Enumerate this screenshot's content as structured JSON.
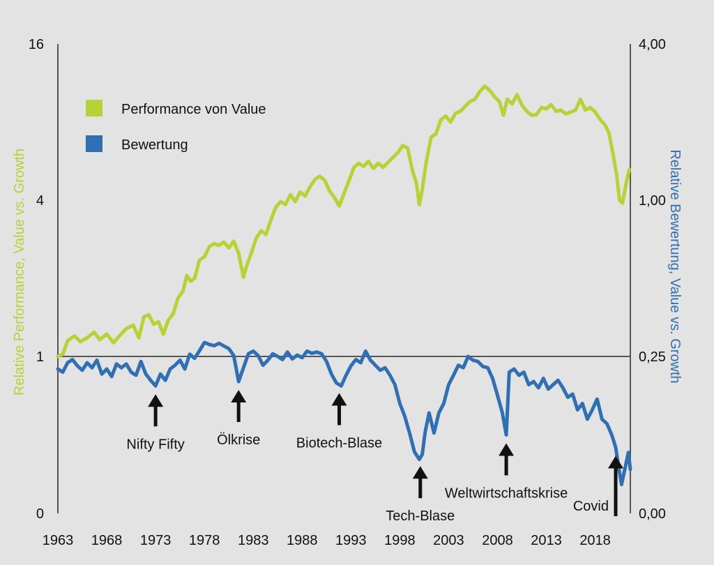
{
  "colors": {
    "background": "#e3e3e3",
    "performance": "#b5d334",
    "valuation": "#2f6fb3",
    "axis": "#555555",
    "arrow": "#111111"
  },
  "chart_data": {
    "type": "line",
    "x_ticks": [
      "1963",
      "1968",
      "1973",
      "1978",
      "1983",
      "1988",
      "1993",
      "1998",
      "2003",
      "2008",
      "2013",
      "2018"
    ],
    "x_range": [
      1963,
      2021.6
    ],
    "y_left": {
      "label": "Relative Performance, Value vs. Growth",
      "scale": "log-segmented",
      "ticks": [
        "0",
        "1",
        "4",
        "16"
      ],
      "tick_values": [
        0,
        1,
        4,
        16
      ]
    },
    "y_right": {
      "label": "Relative Bewertung, Value vs. Growth",
      "scale": "log-segmented",
      "ticks": [
        "0,00",
        "0,25",
        "1,00",
        "4,00"
      ],
      "tick_values": [
        0,
        0.25,
        1,
        4
      ]
    },
    "reference_line": 1,
    "legend": {
      "position": "top-left",
      "items": [
        {
          "label": "Performance von Value",
          "color": "#b5d334"
        },
        {
          "label": "Bewertung",
          "color": "#2f6fb3"
        }
      ]
    },
    "series": [
      {
        "name": "Performance von Value",
        "axis": "left",
        "color": "#b5d334",
        "points": [
          [
            1963.0,
            1.0
          ],
          [
            1963.5,
            1.02
          ],
          [
            1964.0,
            1.15
          ],
          [
            1964.7,
            1.2
          ],
          [
            1965.3,
            1.14
          ],
          [
            1966.0,
            1.18
          ],
          [
            1966.7,
            1.24
          ],
          [
            1967.3,
            1.16
          ],
          [
            1968.0,
            1.22
          ],
          [
            1968.7,
            1.13
          ],
          [
            1969.3,
            1.2
          ],
          [
            1970.0,
            1.28
          ],
          [
            1970.7,
            1.32
          ],
          [
            1971.3,
            1.18
          ],
          [
            1971.8,
            1.42
          ],
          [
            1972.3,
            1.45
          ],
          [
            1972.8,
            1.33
          ],
          [
            1973.3,
            1.36
          ],
          [
            1973.8,
            1.22
          ],
          [
            1974.3,
            1.38
          ],
          [
            1974.8,
            1.46
          ],
          [
            1975.3,
            1.68
          ],
          [
            1975.8,
            1.78
          ],
          [
            1976.2,
            2.05
          ],
          [
            1976.6,
            1.95
          ],
          [
            1977.0,
            2.0
          ],
          [
            1977.5,
            2.35
          ],
          [
            1978.0,
            2.42
          ],
          [
            1978.5,
            2.65
          ],
          [
            1979.0,
            2.72
          ],
          [
            1979.5,
            2.68
          ],
          [
            1980.0,
            2.76
          ],
          [
            1980.5,
            2.62
          ],
          [
            1981.0,
            2.78
          ],
          [
            1981.5,
            2.5
          ],
          [
            1982.0,
            2.02
          ],
          [
            1982.3,
            2.22
          ],
          [
            1982.8,
            2.5
          ],
          [
            1983.3,
            2.85
          ],
          [
            1983.8,
            3.05
          ],
          [
            1984.3,
            2.95
          ],
          [
            1984.8,
            3.35
          ],
          [
            1985.3,
            3.75
          ],
          [
            1985.8,
            3.95
          ],
          [
            1986.3,
            3.85
          ],
          [
            1986.8,
            4.2
          ],
          [
            1987.3,
            3.95
          ],
          [
            1987.8,
            4.3
          ],
          [
            1988.3,
            4.15
          ],
          [
            1988.8,
            4.5
          ],
          [
            1989.3,
            4.8
          ],
          [
            1989.8,
            4.95
          ],
          [
            1990.3,
            4.78
          ],
          [
            1990.8,
            4.35
          ],
          [
            1991.3,
            4.1
          ],
          [
            1991.8,
            3.8
          ],
          [
            1992.3,
            4.25
          ],
          [
            1992.8,
            4.75
          ],
          [
            1993.3,
            5.35
          ],
          [
            1993.8,
            5.55
          ],
          [
            1994.3,
            5.4
          ],
          [
            1994.8,
            5.65
          ],
          [
            1995.3,
            5.3
          ],
          [
            1995.8,
            5.55
          ],
          [
            1996.3,
            5.35
          ],
          [
            1996.8,
            5.6
          ],
          [
            1997.3,
            5.85
          ],
          [
            1997.8,
            6.1
          ],
          [
            1998.3,
            6.5
          ],
          [
            1998.8,
            6.35
          ],
          [
            1999.3,
            5.2
          ],
          [
            1999.7,
            4.65
          ],
          [
            2000.0,
            3.85
          ],
          [
            2000.3,
            4.4
          ],
          [
            2000.7,
            5.6
          ],
          [
            2001.2,
            7.0
          ],
          [
            2001.7,
            7.2
          ],
          [
            2002.2,
            8.15
          ],
          [
            2002.7,
            8.45
          ],
          [
            2003.2,
            8.0
          ],
          [
            2003.7,
            8.65
          ],
          [
            2004.2,
            8.8
          ],
          [
            2004.7,
            9.2
          ],
          [
            2005.2,
            9.6
          ],
          [
            2005.7,
            9.8
          ],
          [
            2006.2,
            10.5
          ],
          [
            2006.7,
            11.0
          ],
          [
            2007.2,
            10.6
          ],
          [
            2007.7,
            10.0
          ],
          [
            2008.2,
            9.6
          ],
          [
            2008.6,
            8.5
          ],
          [
            2009.0,
            9.8
          ],
          [
            2009.5,
            9.4
          ],
          [
            2010.0,
            10.2
          ],
          [
            2010.5,
            9.3
          ],
          [
            2011.0,
            8.8
          ],
          [
            2011.5,
            8.5
          ],
          [
            2012.0,
            8.55
          ],
          [
            2012.5,
            9.1
          ],
          [
            2013.0,
            9.0
          ],
          [
            2013.5,
            9.35
          ],
          [
            2014.0,
            8.8
          ],
          [
            2014.5,
            8.9
          ],
          [
            2015.0,
            8.6
          ],
          [
            2015.5,
            8.75
          ],
          [
            2016.0,
            8.9
          ],
          [
            2016.5,
            9.8
          ],
          [
            2017.0,
            8.9
          ],
          [
            2017.5,
            9.1
          ],
          [
            2018.0,
            8.75
          ],
          [
            2018.5,
            8.2
          ],
          [
            2019.0,
            7.8
          ],
          [
            2019.4,
            7.3
          ],
          [
            2019.8,
            6.1
          ],
          [
            2020.2,
            5.0
          ],
          [
            2020.5,
            4.0
          ],
          [
            2020.8,
            3.9
          ],
          [
            2021.2,
            4.7
          ],
          [
            2021.5,
            5.25
          ]
        ]
      },
      {
        "name": "Bewertung",
        "axis": "right",
        "color": "#2f6fb3",
        "points": [
          [
            1963.0,
            0.23
          ],
          [
            1963.5,
            0.225
          ],
          [
            1964.0,
            0.24
          ],
          [
            1964.5,
            0.245
          ],
          [
            1965.0,
            0.235
          ],
          [
            1965.5,
            0.228
          ],
          [
            1966.0,
            0.24
          ],
          [
            1966.5,
            0.232
          ],
          [
            1967.0,
            0.244
          ],
          [
            1967.5,
            0.222
          ],
          [
            1968.0,
            0.23
          ],
          [
            1968.5,
            0.218
          ],
          [
            1969.0,
            0.238
          ],
          [
            1969.5,
            0.232
          ],
          [
            1970.0,
            0.238
          ],
          [
            1970.5,
            0.225
          ],
          [
            1971.0,
            0.22
          ],
          [
            1971.5,
            0.242
          ],
          [
            1972.0,
            0.222
          ],
          [
            1972.5,
            0.212
          ],
          [
            1973.0,
            0.203
          ],
          [
            1973.5,
            0.222
          ],
          [
            1974.0,
            0.212
          ],
          [
            1974.5,
            0.23
          ],
          [
            1975.0,
            0.236
          ],
          [
            1975.5,
            0.244
          ],
          [
            1976.0,
            0.23
          ],
          [
            1976.5,
            0.255
          ],
          [
            1977.0,
            0.247
          ],
          [
            1977.5,
            0.263
          ],
          [
            1978.0,
            0.283
          ],
          [
            1978.5,
            0.278
          ],
          [
            1979.0,
            0.275
          ],
          [
            1979.5,
            0.281
          ],
          [
            1980.0,
            0.274
          ],
          [
            1980.5,
            0.268
          ],
          [
            1981.0,
            0.252
          ],
          [
            1981.5,
            0.21
          ],
          [
            1982.0,
            0.232
          ],
          [
            1982.5,
            0.256
          ],
          [
            1983.0,
            0.262
          ],
          [
            1983.5,
            0.252
          ],
          [
            1984.0,
            0.236
          ],
          [
            1984.5,
            0.244
          ],
          [
            1985.0,
            0.256
          ],
          [
            1985.5,
            0.25
          ],
          [
            1986.0,
            0.245
          ],
          [
            1986.5,
            0.26
          ],
          [
            1987.0,
            0.246
          ],
          [
            1987.5,
            0.253
          ],
          [
            1988.0,
            0.248
          ],
          [
            1988.5,
            0.262
          ],
          [
            1989.0,
            0.257
          ],
          [
            1989.5,
            0.26
          ],
          [
            1990.0,
            0.256
          ],
          [
            1990.5,
            0.242
          ],
          [
            1991.0,
            0.222
          ],
          [
            1991.5,
            0.208
          ],
          [
            1992.0,
            0.203
          ],
          [
            1992.5,
            0.22
          ],
          [
            1993.0,
            0.235
          ],
          [
            1993.5,
            0.245
          ],
          [
            1994.0,
            0.24
          ],
          [
            1994.5,
            0.262
          ],
          [
            1995.0,
            0.244
          ],
          [
            1995.5,
            0.236
          ],
          [
            1996.0,
            0.228
          ],
          [
            1996.5,
            0.232
          ],
          [
            1997.0,
            0.22
          ],
          [
            1997.5,
            0.205
          ],
          [
            1998.0,
            0.175
          ],
          [
            1998.5,
            0.155
          ],
          [
            1999.0,
            0.128
          ],
          [
            1999.5,
            0.098
          ],
          [
            2000.0,
            0.086
          ],
          [
            2000.3,
            0.094
          ],
          [
            2000.6,
            0.13
          ],
          [
            2001.0,
            0.16
          ],
          [
            2001.5,
            0.128
          ],
          [
            2002.0,
            0.16
          ],
          [
            2002.5,
            0.175
          ],
          [
            2003.0,
            0.205
          ],
          [
            2003.5,
            0.22
          ],
          [
            2004.0,
            0.236
          ],
          [
            2004.5,
            0.232
          ],
          [
            2005.0,
            0.25
          ],
          [
            2005.5,
            0.244
          ],
          [
            2006.0,
            0.242
          ],
          [
            2006.5,
            0.234
          ],
          [
            2007.0,
            0.232
          ],
          [
            2007.5,
            0.215
          ],
          [
            2008.0,
            0.188
          ],
          [
            2008.5,
            0.16
          ],
          [
            2008.9,
            0.125
          ],
          [
            2009.2,
            0.225
          ],
          [
            2009.7,
            0.23
          ],
          [
            2010.2,
            0.22
          ],
          [
            2010.7,
            0.225
          ],
          [
            2011.2,
            0.205
          ],
          [
            2011.7,
            0.21
          ],
          [
            2012.2,
            0.2
          ],
          [
            2012.7,
            0.215
          ],
          [
            2013.2,
            0.198
          ],
          [
            2013.7,
            0.205
          ],
          [
            2014.2,
            0.212
          ],
          [
            2014.7,
            0.2
          ],
          [
            2015.2,
            0.185
          ],
          [
            2015.7,
            0.19
          ],
          [
            2016.2,
            0.165
          ],
          [
            2016.7,
            0.175
          ],
          [
            2017.2,
            0.15
          ],
          [
            2017.7,
            0.165
          ],
          [
            2018.2,
            0.182
          ],
          [
            2018.7,
            0.15
          ],
          [
            2019.2,
            0.143
          ],
          [
            2019.7,
            0.125
          ],
          [
            2020.1,
            0.105
          ],
          [
            2020.4,
            0.074
          ],
          [
            2020.7,
            0.046
          ],
          [
            2021.1,
            0.075
          ],
          [
            2021.4,
            0.097
          ],
          [
            2021.6,
            0.07
          ]
        ]
      }
    ],
    "annotations": [
      {
        "label": "Nifty Fifty",
        "year": 1973.0
      },
      {
        "label": "Ölkrise",
        "year": 1981.5
      },
      {
        "label": "Biotech-Blase",
        "year": 1991.8
      },
      {
        "label": "Tech-Blase",
        "year": 2000.1
      },
      {
        "label": "Weltwirtschaftskrise",
        "year": 2008.9
      },
      {
        "label": "Covid",
        "year": 2020.1
      }
    ]
  }
}
